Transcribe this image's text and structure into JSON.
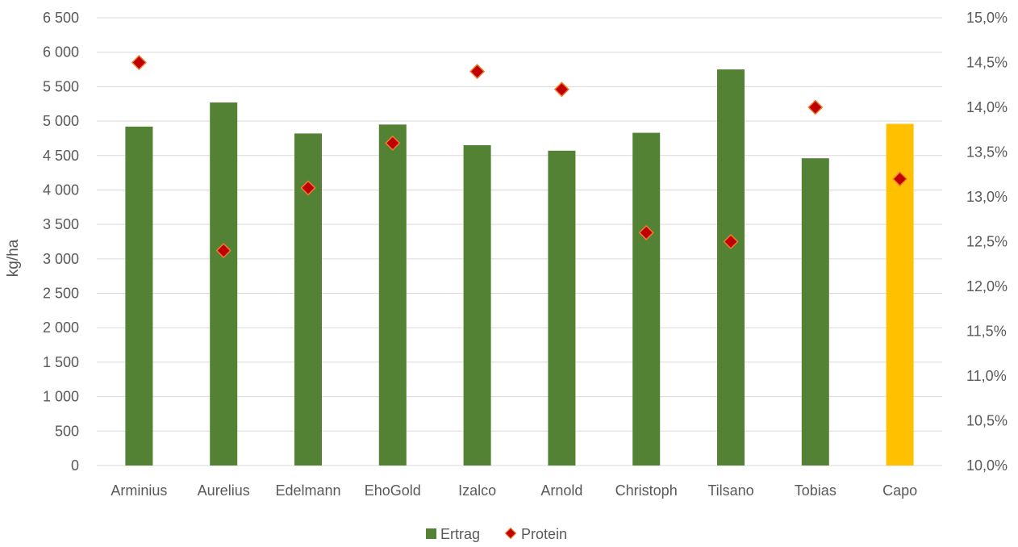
{
  "chart_data": {
    "type": "bar",
    "categories": [
      "Arminius",
      "Aurelius",
      "Edelmann",
      "EhoGold",
      "Izalco",
      "Arnold",
      "Christoph",
      "Tilsano",
      "Tobias",
      "Capo"
    ],
    "series": [
      {
        "name": "Ertrag",
        "type": "bar",
        "axis": "left",
        "color": "#548235",
        "values": [
          4920,
          5270,
          4820,
          4950,
          4650,
          4570,
          4830,
          5750,
          4460,
          4960
        ],
        "point_colors": [
          "#548235",
          "#548235",
          "#548235",
          "#548235",
          "#548235",
          "#548235",
          "#548235",
          "#548235",
          "#548235",
          "#FFC000"
        ]
      },
      {
        "name": "Protein",
        "type": "scatter",
        "marker": "diamond",
        "axis": "right",
        "color": "#C00000",
        "edge_color": "#ED7D31",
        "values": [
          14.5,
          12.4,
          13.1,
          13.6,
          14.4,
          14.2,
          12.6,
          12.5,
          14.0,
          13.2
        ]
      }
    ],
    "ylabel": "kg/ha",
    "ylim": [
      0,
      6500
    ],
    "y_ticks": [
      "0",
      "500",
      "1 000",
      "1 500",
      "2 000",
      "2 500",
      "3 000",
      "3 500",
      "4 000",
      "4 500",
      "5 000",
      "5 500",
      "6 000",
      "6 500"
    ],
    "y2lim": [
      10.0,
      15.0
    ],
    "y2_ticks": [
      "10,0%",
      "10,5%",
      "11,0%",
      "11,5%",
      "12,0%",
      "12,5%",
      "13,0%",
      "13,5%",
      "14,0%",
      "14,5%",
      "15,0%"
    ],
    "grid": true,
    "grid_color": "#D9D9D9",
    "legend_position": "bottom"
  }
}
